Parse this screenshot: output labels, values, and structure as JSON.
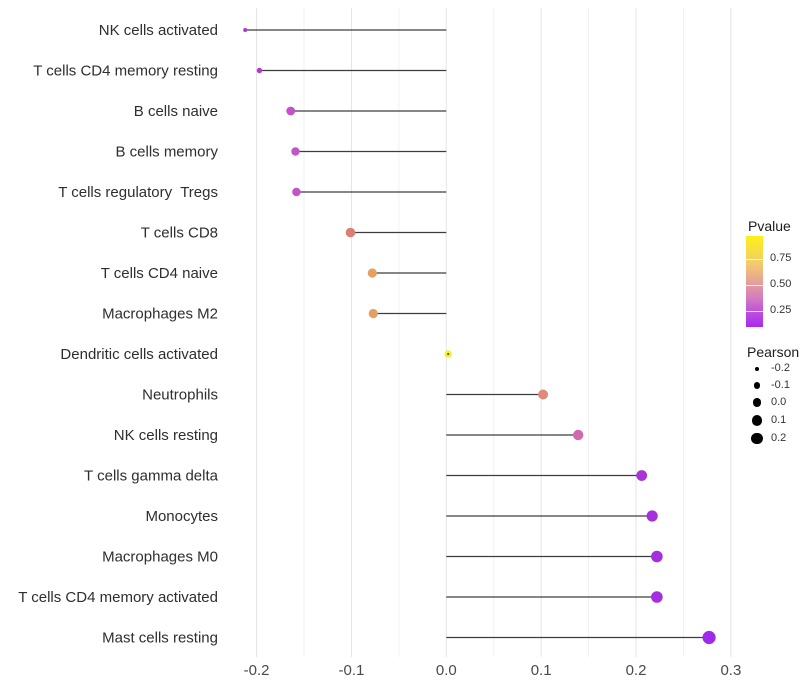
{
  "chart_data": {
    "type": "lollipop",
    "orientation": "horizontal",
    "title": "",
    "xlabel": "",
    "ylabel": "",
    "x_ticks": [
      "-0.2",
      "-0.1",
      "0.0",
      "0.1",
      "0.2",
      "0.3"
    ],
    "xlim": [
      -0.236,
      0.309
    ],
    "grid": "vertical major every 0.1, minor every 0.05",
    "categories": [
      "NK cells activated",
      "T cells CD4 memory resting",
      "B cells naive",
      "B cells memory",
      "T cells regulatory  Tregs",
      "T cells CD8",
      "T cells CD4 naive",
      "Macrophages M2",
      "Dendritic cells activated",
      "Neutrophils",
      "NK cells resting",
      "T cells gamma delta",
      "Monocytes",
      "Macrophages M0",
      "T cells CD4 memory activated",
      "Mast cells resting"
    ],
    "points": [
      {
        "label": "NK cells activated",
        "pearson": -0.212,
        "dot_color": "#b136d2",
        "dot_r": 2.0
      },
      {
        "label": "T cells CD4 memory resting",
        "pearson": -0.197,
        "dot_color": "#b138d0",
        "dot_r": 2.7
      },
      {
        "label": "B cells naive",
        "pearson": -0.164,
        "dot_color": "#c252c8",
        "dot_r": 4.4
      },
      {
        "label": "B cells memory",
        "pearson": -0.159,
        "dot_color": "#c455c5",
        "dot_r": 4.2
      },
      {
        "label": "T cells regulatory  Tregs",
        "pearson": -0.158,
        "dot_color": "#c353c7",
        "dot_r": 4.2
      },
      {
        "label": "T cells CD8",
        "pearson": -0.101,
        "dot_color": "#d97f74",
        "dot_r": 4.8
      },
      {
        "label": "T cells CD4 naive",
        "pearson": -0.078,
        "dot_color": "#e7a15e",
        "dot_r": 4.6
      },
      {
        "label": "Macrophages M2",
        "pearson": -0.077,
        "dot_color": "#e4a061",
        "dot_r": 4.6
      },
      {
        "label": "Dendritic cells activated",
        "pearson": 0.002,
        "dot_color": "#f8ee2f",
        "dot_r": 3.7
      },
      {
        "label": "Neutrophils",
        "pearson": 0.102,
        "dot_color": "#e08a7e",
        "dot_r": 5.0
      },
      {
        "label": "NK cells resting",
        "pearson": 0.139,
        "dot_color": "#ce6aad",
        "dot_r": 5.2
      },
      {
        "label": "T cells gamma delta",
        "pearson": 0.206,
        "dot_color": "#a935d8",
        "dot_r": 5.4
      },
      {
        "label": "Monocytes",
        "pearson": 0.217,
        "dot_color": "#a631dc",
        "dot_r": 5.6
      },
      {
        "label": "Macrophages M0",
        "pearson": 0.222,
        "dot_color": "#a52fe0",
        "dot_r": 5.8
      },
      {
        "label": "T cells CD4 memory activated",
        "pearson": 0.222,
        "dot_color": "#a52fe0",
        "dot_r": 5.8
      },
      {
        "label": "Mast cells resting",
        "pearson": 0.277,
        "dot_color": "#9d2be8",
        "dot_r": 6.6
      }
    ],
    "legend_color": {
      "title": "Pvalue",
      "tick_labels": [
        "0.75",
        "0.50",
        "0.25"
      ],
      "gradient_top": "#fcf116",
      "gradient_bottom": "#a829ee"
    },
    "legend_size": {
      "title": "Pearson",
      "tick_labels": [
        "-0.2",
        "-0.1",
        "0.0",
        "0.1",
        "0.2"
      ],
      "dot_color": "#000000"
    },
    "legend_position": "right"
  },
  "colors": {
    "background": "#ffffff",
    "stem": "#3d3d3d",
    "grid_major": "#e4e4e4",
    "grid_minor": "#f1f1f1",
    "category_text": "#2e2e2e",
    "axis_tick_text": "#4a4a4a",
    "zero_dot_center": "#555555"
  }
}
